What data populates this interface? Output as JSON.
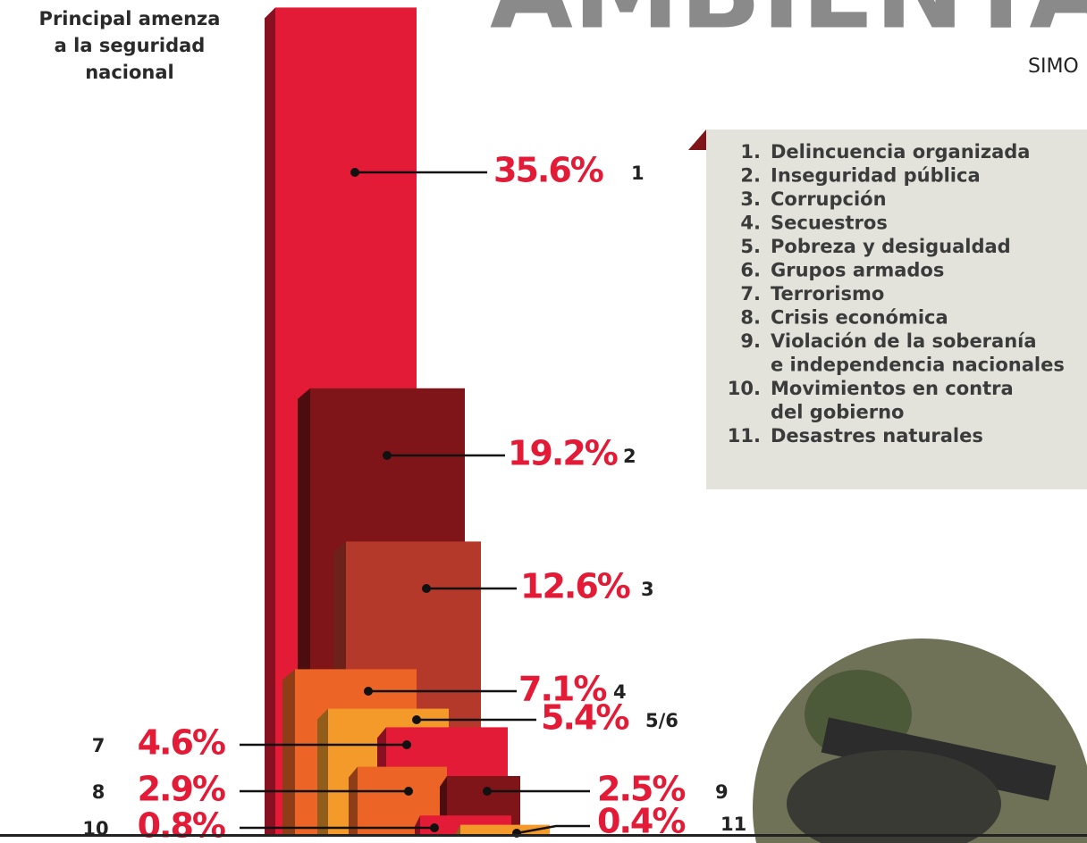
{
  "header": {
    "title_fragment": "AMBIENTAL",
    "subtitle_fragment": "SIMO"
  },
  "chart_data": {
    "type": "bar",
    "title": [
      "Principal amenza",
      "a la seguridad",
      "nacional"
    ],
    "categories": [
      "1",
      "2",
      "3",
      "4",
      "5/6",
      "7",
      "8",
      "9",
      "10",
      "11"
    ],
    "values": [
      35.6,
      19.2,
      12.6,
      7.1,
      5.4,
      4.6,
      2.9,
      2.5,
      0.8,
      0.4
    ],
    "value_labels": [
      "35.6%",
      "19.2%",
      "12.6%",
      "7.1%",
      "5.4%",
      "4.6%",
      "2.9%",
      "2.5%",
      "0.8%",
      "0.4%"
    ],
    "colors": [
      "#e31b37",
      "#7f1519",
      "#b5392a",
      "#ec6526",
      "#f39a2b",
      "#e31b37",
      "#ec6526",
      "#7f1519",
      "#e31b37",
      "#f39a2b"
    ],
    "label_color": "#e31b37",
    "legend": [
      {
        "number": "1.",
        "lines": [
          "Delincuencia organizada"
        ]
      },
      {
        "number": "2.",
        "lines": [
          "Inseguridad pública"
        ]
      },
      {
        "number": "3.",
        "lines": [
          "Corrupción"
        ]
      },
      {
        "number": "4.",
        "lines": [
          "Secuestros"
        ]
      },
      {
        "number": "5.",
        "lines": [
          "Pobreza y desigualdad"
        ]
      },
      {
        "number": "6.",
        "lines": [
          "Grupos armados"
        ]
      },
      {
        "number": "7.",
        "lines": [
          "Terrorismo"
        ]
      },
      {
        "number": "8.",
        "lines": [
          "Crisis económica"
        ]
      },
      {
        "number": "9.",
        "lines": [
          "Violación de la soberanía",
          "e independencia nacionales"
        ]
      },
      {
        "number": "10.",
        "lines": [
          "Movimientos en contra",
          "del gobierno"
        ]
      },
      {
        "number": "11.",
        "lines": [
          "Desastres naturales"
        ]
      }
    ]
  }
}
